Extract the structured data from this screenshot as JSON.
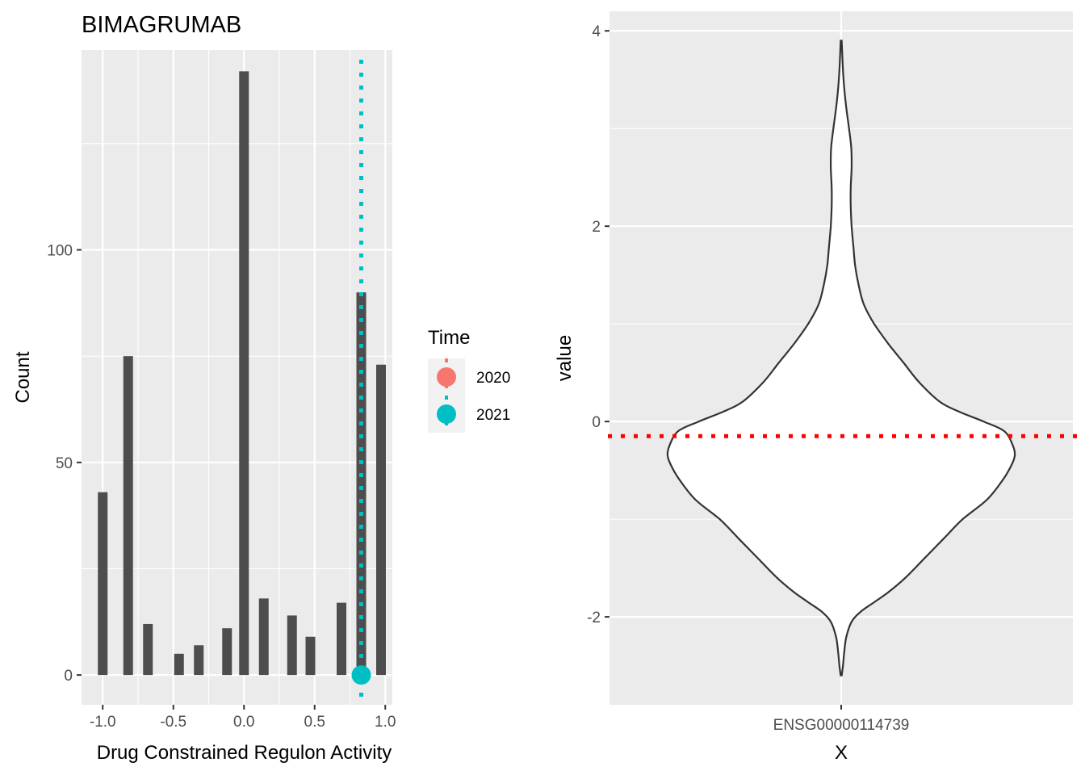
{
  "chart_data": [
    {
      "type": "bar",
      "title": "BIMAGRUMAB",
      "xlabel": "Drug Constrained Regulon Activity",
      "ylabel": "Count",
      "xlim": [
        -1.15,
        1.05
      ],
      "ylim": [
        -7,
        147
      ],
      "x_ticks": [
        -1.0,
        -0.5,
        0.0,
        0.5,
        1.0
      ],
      "x_tick_labels": [
        "-1.0",
        "-0.5",
        "0.0",
        "0.5",
        "1.0"
      ],
      "y_ticks": [
        0,
        50,
        100
      ],
      "y_tick_labels": [
        "0",
        "50",
        "100"
      ],
      "bars": [
        {
          "x": -1.0,
          "count": 43
        },
        {
          "x": -0.82,
          "count": 75
        },
        {
          "x": -0.68,
          "count": 12
        },
        {
          "x": -0.46,
          "count": 5
        },
        {
          "x": -0.32,
          "count": 7
        },
        {
          "x": -0.12,
          "count": 11
        },
        {
          "x": 0.0,
          "count": 142
        },
        {
          "x": 0.14,
          "count": 18
        },
        {
          "x": 0.34,
          "count": 14
        },
        {
          "x": 0.47,
          "count": 9
        },
        {
          "x": 0.69,
          "count": 17
        },
        {
          "x": 0.83,
          "count": 90
        },
        {
          "x": 0.97,
          "count": 73
        }
      ],
      "points": [
        {
          "series": "2021",
          "x": 0.83,
          "y": 0
        }
      ],
      "vlines": [
        {
          "series": "2021",
          "x": 0.83,
          "style": "dotted"
        }
      ],
      "legend": {
        "title": "Time",
        "placement": "right",
        "items": [
          {
            "label": "2020",
            "color": "#F8766D"
          },
          {
            "label": "2021",
            "color": "#00BFC4"
          }
        ]
      },
      "grid": true,
      "background": "#EBEBEB",
      "bar_color": "#4D4D4D"
    },
    {
      "type": "violin",
      "xlabel": "X",
      "ylabel": "value",
      "categories": [
        "ENSG00000114739"
      ],
      "ylim": [
        -2.9,
        4.2
      ],
      "y_ticks": [
        -2,
        0,
        2,
        4
      ],
      "y_tick_labels": [
        "-2",
        "0",
        "2",
        "4"
      ],
      "violin_range": [
        -2.6,
        3.9
      ],
      "density_profile": [
        {
          "y": -2.6,
          "w": 0.003
        },
        {
          "y": -2.5,
          "w": 0.01
        },
        {
          "y": -2.35,
          "w": 0.018
        },
        {
          "y": -2.2,
          "w": 0.03
        },
        {
          "y": -2.05,
          "w": 0.06
        },
        {
          "y": -1.95,
          "w": 0.11
        },
        {
          "y": -1.85,
          "w": 0.19
        },
        {
          "y": -1.75,
          "w": 0.27
        },
        {
          "y": -1.6,
          "w": 0.37
        },
        {
          "y": -1.4,
          "w": 0.48
        },
        {
          "y": -1.2,
          "w": 0.59
        },
        {
          "y": -1.0,
          "w": 0.7
        },
        {
          "y": -0.8,
          "w": 0.84
        },
        {
          "y": -0.6,
          "w": 0.93
        },
        {
          "y": -0.45,
          "w": 0.98
        },
        {
          "y": -0.35,
          "w": 1.0
        },
        {
          "y": -0.25,
          "w": 0.99
        },
        {
          "y": -0.1,
          "w": 0.94
        },
        {
          "y": 0.0,
          "w": 0.82
        },
        {
          "y": 0.1,
          "w": 0.68
        },
        {
          "y": 0.2,
          "w": 0.57
        },
        {
          "y": 0.4,
          "w": 0.45
        },
        {
          "y": 0.6,
          "w": 0.36
        },
        {
          "y": 0.8,
          "w": 0.27
        },
        {
          "y": 1.0,
          "w": 0.19
        },
        {
          "y": 1.2,
          "w": 0.13
        },
        {
          "y": 1.4,
          "w": 0.1
        },
        {
          "y": 1.6,
          "w": 0.08
        },
        {
          "y": 1.8,
          "w": 0.07
        },
        {
          "y": 2.0,
          "w": 0.06
        },
        {
          "y": 2.2,
          "w": 0.055
        },
        {
          "y": 2.4,
          "w": 0.055
        },
        {
          "y": 2.6,
          "w": 0.06
        },
        {
          "y": 2.8,
          "w": 0.058
        },
        {
          "y": 3.0,
          "w": 0.045
        },
        {
          "y": 3.2,
          "w": 0.03
        },
        {
          "y": 3.4,
          "w": 0.018
        },
        {
          "y": 3.6,
          "w": 0.01
        },
        {
          "y": 3.9,
          "w": 0.003
        }
      ],
      "hline": {
        "y": -0.15,
        "color": "#FF0000",
        "style": "dotted"
      },
      "grid": true,
      "background": "#EBEBEB"
    }
  ]
}
